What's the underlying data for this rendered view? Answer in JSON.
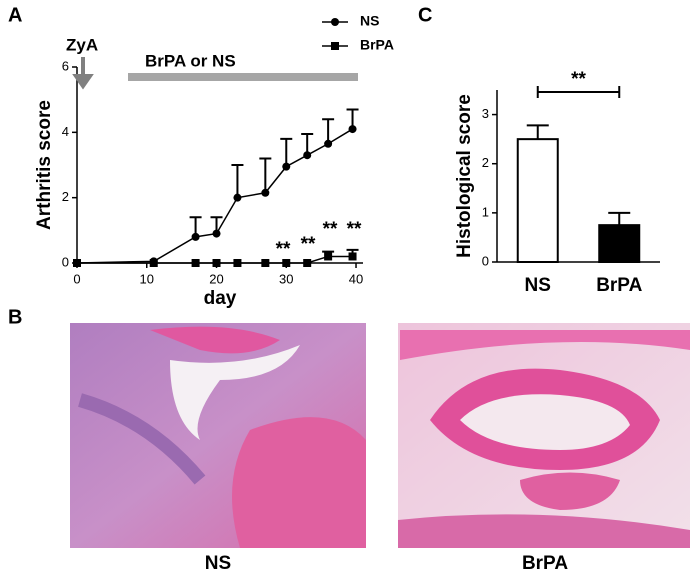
{
  "panel_labels": [
    "A",
    "B",
    "C"
  ],
  "image_captions": [
    "NS",
    "BrPA"
  ],
  "chart_data": [
    {
      "type": "line",
      "xlabel": "day",
      "ylabel": "Arthritis score",
      "annotations": [
        "ZyA",
        "BrPA or NS",
        "**",
        "**",
        "**",
        "**"
      ],
      "x": [
        0,
        11,
        17,
        20,
        23,
        27,
        30,
        33,
        36,
        39.5
      ],
      "series": [
        {
          "name": "NS",
          "color": "#000000",
          "marker": "circle",
          "values": [
            0,
            0.05,
            0.8,
            0.9,
            2.0,
            2.15,
            2.95,
            3.3,
            3.65,
            4.1
          ],
          "errors": [
            0,
            0,
            0.6,
            0.5,
            1.0,
            1.05,
            0.85,
            0.65,
            0.75,
            0.6
          ]
        },
        {
          "name": "BrPA",
          "color": "#000000",
          "marker": "square",
          "values": [
            0,
            0,
            0,
            0,
            0,
            0,
            0,
            0,
            0.2,
            0.2
          ],
          "errors": [
            0,
            0,
            0,
            0,
            0,
            0,
            0,
            0,
            0.15,
            0.2
          ]
        }
      ],
      "xlim": [
        0,
        41
      ],
      "xticks": [
        0,
        10,
        20,
        30,
        40
      ],
      "ylim": [
        0,
        6
      ],
      "yticks": [
        0,
        2,
        4,
        6
      ],
      "legend": "top-right"
    },
    {
      "type": "bar",
      "ylabel": "Histological score",
      "annotations": [
        "**"
      ],
      "categories": [
        "NS",
        "BrPA"
      ],
      "values": [
        2.5,
        0.75
      ],
      "errors": [
        0.28,
        0.25
      ],
      "colors": [
        "#ffffff",
        "#000000"
      ],
      "ylim": [
        0,
        3.5
      ],
      "yticks": [
        0,
        1,
        2,
        3
      ]
    }
  ]
}
